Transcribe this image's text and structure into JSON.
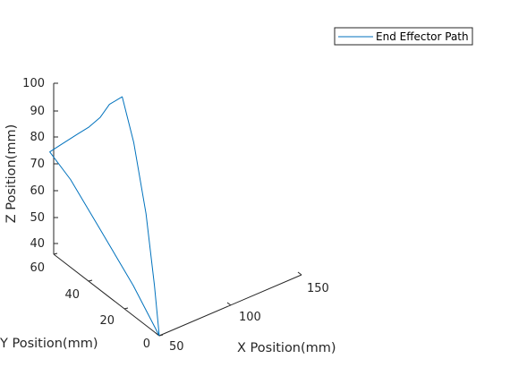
{
  "chart_data": {
    "type": "line",
    "projection": "3d",
    "title": "",
    "xlabel": "X Position(mm)",
    "ylabel": "Y Position(mm)",
    "zlabel": "Z Position(mm)",
    "xlim": [
      50,
      150
    ],
    "ylim": [
      0,
      60
    ],
    "zlim": [
      35,
      100
    ],
    "xticks": [
      "50",
      "100",
      "150"
    ],
    "yticks": [
      "0",
      "20",
      "40",
      "60"
    ],
    "zticks": [
      "40",
      "50",
      "60",
      "70",
      "80",
      "90",
      "100"
    ],
    "grid": false,
    "legend": {
      "position": "top-right",
      "entries": [
        "End Effector Path"
      ]
    },
    "colors": {
      "series": "#0072BD",
      "axes": "#262626",
      "legend_border": "#262626"
    },
    "series": [
      {
        "name": "End Effector Path",
        "points": [
          {
            "x": 50,
            "y": 0,
            "z": 35
          },
          {
            "x": 49,
            "y": 14,
            "z": 47
          },
          {
            "x": 48,
            "y": 30,
            "z": 58
          },
          {
            "x": 47,
            "y": 48,
            "z": 70
          },
          {
            "x": 46,
            "y": 59,
            "z": 75
          },
          {
            "x": 48,
            "y": 55,
            "z": 79
          },
          {
            "x": 52,
            "y": 48,
            "z": 86
          },
          {
            "x": 55,
            "y": 44,
            "z": 90
          },
          {
            "x": 58,
            "y": 40,
            "z": 95
          },
          {
            "x": 62,
            "y": 38,
            "z": 100
          },
          {
            "x": 65,
            "y": 35,
            "z": 103
          },
          {
            "x": 66,
            "y": 34,
            "z": 104
          },
          {
            "x": 63,
            "y": 25,
            "z": 92
          },
          {
            "x": 58,
            "y": 14,
            "z": 72
          },
          {
            "x": 54,
            "y": 6,
            "z": 50
          },
          {
            "x": 50,
            "y": 0,
            "z": 35
          }
        ]
      }
    ]
  }
}
